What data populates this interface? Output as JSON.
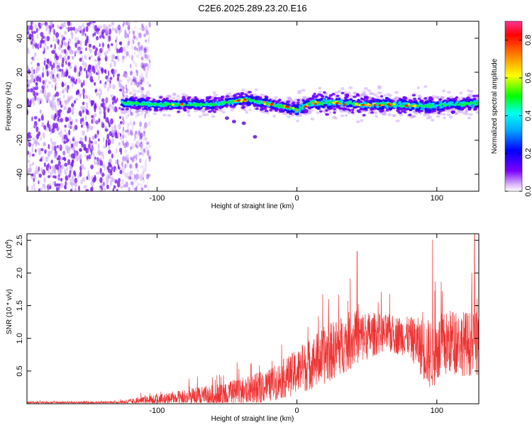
{
  "title": "C2E6.2025.289.23.20.E16",
  "chart_data": [
    {
      "type": "heatmap",
      "xlabel": "Height of straight line (km)",
      "ylabel": "Frequency (Hz)",
      "xlim": [
        -193,
        130
      ],
      "ylim": [
        -50,
        50
      ],
      "xticks": [
        -100,
        0,
        100
      ],
      "xtick_labels": [
        "-100",
        "0",
        "100"
      ],
      "yticks": [
        -40,
        -20,
        0,
        20,
        40
      ],
      "ytick_labels": [
        "-40",
        "-20",
        "0",
        "20",
        "40"
      ],
      "colorbar": {
        "label": "Normalized spectral amplitude",
        "range": [
          0,
          0.9
        ],
        "ticks": [
          0.0,
          0.2,
          0.4,
          0.6,
          0.8
        ],
        "tick_labels": [
          "0.0",
          "0.2",
          "0.4",
          "0.6",
          "0.8"
        ],
        "colormap": [
          "#d9b3ff",
          "#7b00ff",
          "#0000ff",
          "#00ffff",
          "#00ff00",
          "#ffff00",
          "#ff8000",
          "#ff0000",
          "#ff33aa"
        ]
      },
      "noise_region_x": [
        -193,
        -105
      ],
      "signal_start_x": -125,
      "signal_centerline": [
        {
          "x": -125,
          "y": 2
        },
        {
          "x": -100,
          "y": 1
        },
        {
          "x": -80,
          "y": 1
        },
        {
          "x": -60,
          "y": 1
        },
        {
          "x": -45,
          "y": 3
        },
        {
          "x": -35,
          "y": 4
        },
        {
          "x": -25,
          "y": 2
        },
        {
          "x": -10,
          "y": 0
        },
        {
          "x": 0,
          "y": -2
        },
        {
          "x": 10,
          "y": 2
        },
        {
          "x": 30,
          "y": 2
        },
        {
          "x": 50,
          "y": 1
        },
        {
          "x": 70,
          "y": 1
        },
        {
          "x": 90,
          "y": 0
        },
        {
          "x": 110,
          "y": 1
        },
        {
          "x": 130,
          "y": 2
        }
      ],
      "hot_spots_x": [
        -85,
        -40,
        -20,
        -5,
        10,
        30,
        45,
        55,
        65,
        80
      ]
    },
    {
      "type": "line",
      "xlabel": "Height of straight line (km)",
      "ylabel": "SNR (10 * v/v)",
      "y_multiplier_label": "(x10",
      "y_multiplier_exp": "4",
      "xlim": [
        -193,
        130
      ],
      "ylim": [
        0,
        26000
      ],
      "xticks": [
        -100,
        0,
        100
      ],
      "xtick_labels": [
        "-100",
        "0",
        "100"
      ],
      "yticks": [
        5000,
        10000,
        15000,
        20000,
        25000
      ],
      "ytick_labels": [
        "0.5",
        "1.0",
        "1.5",
        "2.0",
        "2.5"
      ],
      "color": "#ee3333",
      "envelope": [
        {
          "x": -193,
          "base": 200,
          "amp": 200
        },
        {
          "x": -130,
          "base": 200,
          "amp": 300
        },
        {
          "x": -110,
          "base": 400,
          "amp": 1200
        },
        {
          "x": -80,
          "base": 800,
          "amp": 2500
        },
        {
          "x": -60,
          "base": 1000,
          "amp": 3500
        },
        {
          "x": -40,
          "base": 1500,
          "amp": 4500
        },
        {
          "x": -20,
          "base": 2500,
          "amp": 5000
        },
        {
          "x": 0,
          "base": 4500,
          "amp": 7000
        },
        {
          "x": 20,
          "base": 7000,
          "amp": 9000
        },
        {
          "x": 40,
          "base": 9500,
          "amp": 9000
        },
        {
          "x": 60,
          "base": 10500,
          "amp": 6000
        },
        {
          "x": 80,
          "base": 10000,
          "amp": 6000
        },
        {
          "x": 95,
          "base": 7000,
          "amp": 11000
        },
        {
          "x": 110,
          "base": 9000,
          "amp": 10000
        },
        {
          "x": 130,
          "base": 8500,
          "amp": 10000
        }
      ],
      "peaks": [
        {
          "x": 43,
          "y": 23300
        },
        {
          "x": 97,
          "y": 25100
        },
        {
          "x": 127,
          "y": 26000
        }
      ]
    }
  ]
}
